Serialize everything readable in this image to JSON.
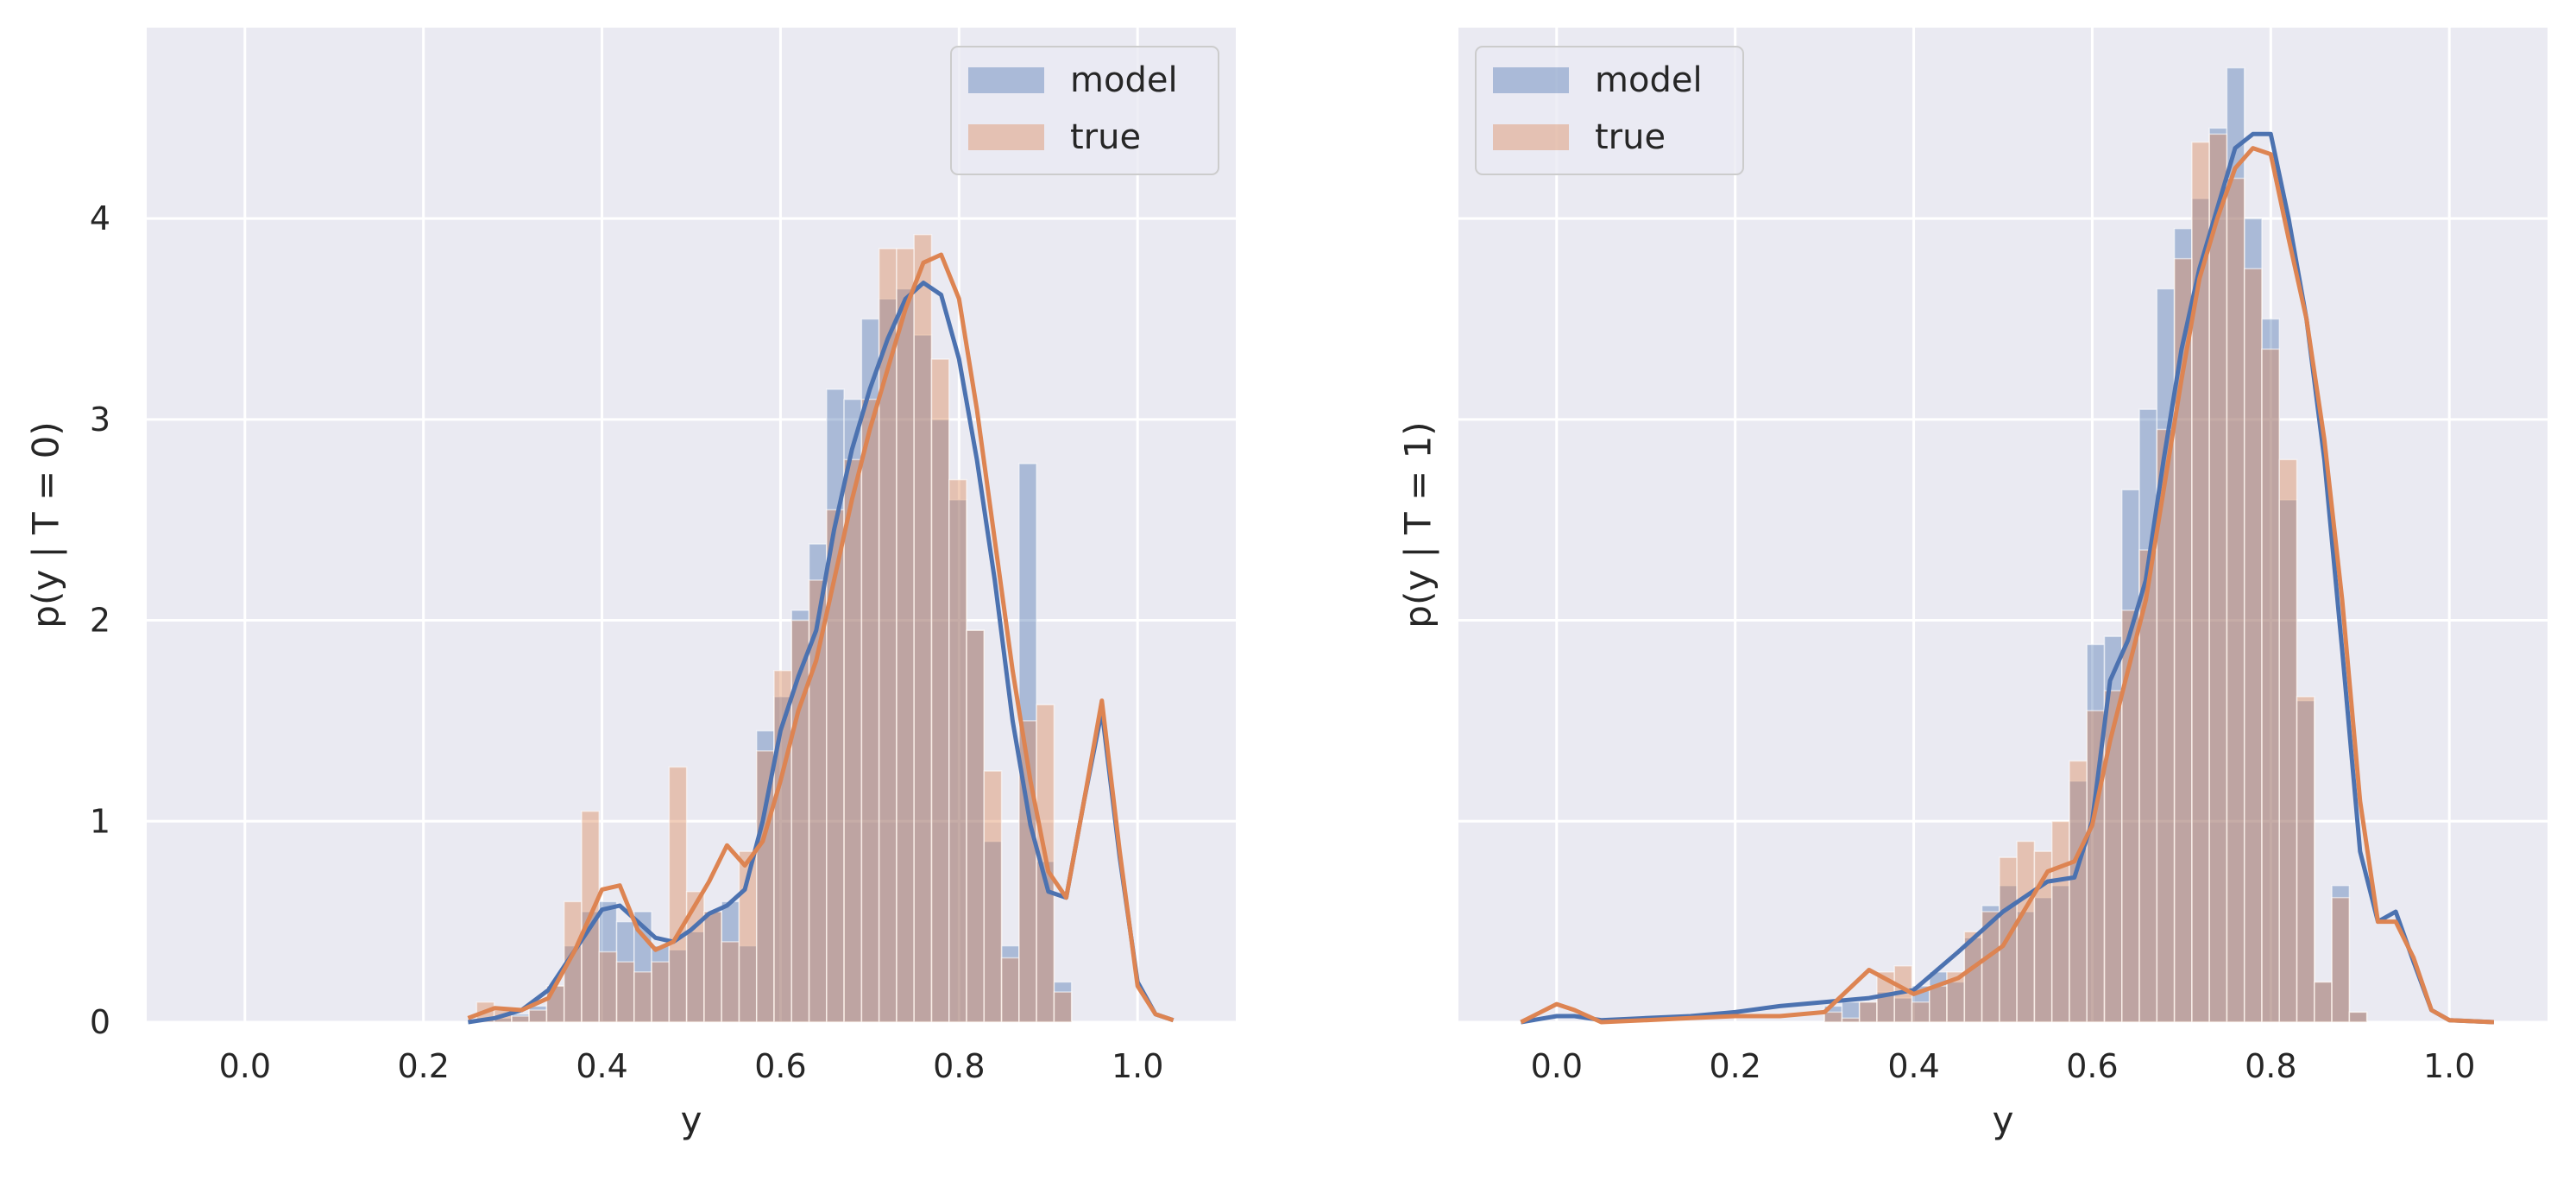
{
  "colors": {
    "panel_background": "#eaeaf2",
    "grid": "#ffffff",
    "model": "#4c72b0",
    "true": "#dd8452",
    "text": "#262626"
  },
  "chart_data": [
    {
      "type": "bar",
      "overlay": "kde-line",
      "title": "",
      "xlabel": "y",
      "ylabel": "p(y | T = 0)",
      "xlim": [
        -0.11,
        1.11
      ],
      "ylim": [
        0,
        4.95
      ],
      "xticks": [
        0.0,
        0.2,
        0.4,
        0.6,
        0.8,
        1.0
      ],
      "xtick_labels": [
        "0.0",
        "0.2",
        "0.4",
        "0.6",
        "0.8",
        "1.0"
      ],
      "yticks": [
        0,
        1,
        2,
        3,
        4
      ],
      "ytick_labels": [
        "0",
        "1",
        "2",
        "3",
        "4"
      ],
      "grid": true,
      "legend": {
        "position": "top-right",
        "entries": [
          "model",
          "true"
        ]
      },
      "bin_start": 0.24,
      "bin_width": 0.0196,
      "series": [
        {
          "name": "model",
          "hist": [
            0.0,
            0.02,
            0.02,
            0.04,
            0.08,
            0.18,
            0.38,
            0.55,
            0.6,
            0.5,
            0.55,
            0.38,
            0.36,
            0.45,
            0.55,
            0.6,
            0.38,
            1.45,
            1.62,
            2.05,
            2.38,
            3.15,
            3.1,
            3.5,
            3.6,
            3.65,
            3.42,
            3.0,
            2.6,
            1.95,
            0.9,
            0.38,
            2.78,
            0.8,
            0.2
          ],
          "kde_x": [
            0.25,
            0.28,
            0.31,
            0.34,
            0.37,
            0.4,
            0.42,
            0.44,
            0.46,
            0.48,
            0.5,
            0.52,
            0.54,
            0.56,
            0.58,
            0.6,
            0.62,
            0.64,
            0.66,
            0.68,
            0.7,
            0.72,
            0.74,
            0.76,
            0.78,
            0.8,
            0.82,
            0.84,
            0.86,
            0.88,
            0.9,
            0.92,
            0.94,
            0.96,
            0.98,
            1.0,
            1.02,
            1.04
          ],
          "kde_y": [
            0.0,
            0.02,
            0.06,
            0.16,
            0.36,
            0.56,
            0.58,
            0.5,
            0.42,
            0.4,
            0.46,
            0.54,
            0.58,
            0.66,
            1.0,
            1.45,
            1.72,
            1.95,
            2.45,
            2.85,
            3.15,
            3.4,
            3.6,
            3.68,
            3.62,
            3.3,
            2.8,
            2.2,
            1.5,
            0.98,
            0.65,
            0.62,
            1.1,
            1.55,
            0.82,
            0.2,
            0.04,
            0.01
          ]
        },
        {
          "name": "true",
          "hist": [
            0.0,
            0.1,
            0.06,
            0.03,
            0.06,
            0.18,
            0.6,
            1.05,
            0.35,
            0.3,
            0.25,
            0.3,
            1.27,
            0.65,
            0.55,
            0.4,
            0.85,
            1.35,
            1.75,
            2.0,
            2.2,
            2.55,
            2.8,
            3.1,
            3.85,
            3.85,
            3.92,
            3.3,
            2.7,
            1.95,
            1.25,
            0.32,
            1.5,
            1.58,
            0.15
          ],
          "kde_x": [
            0.25,
            0.28,
            0.31,
            0.34,
            0.37,
            0.4,
            0.42,
            0.44,
            0.46,
            0.48,
            0.5,
            0.52,
            0.54,
            0.56,
            0.58,
            0.6,
            0.62,
            0.64,
            0.66,
            0.68,
            0.7,
            0.72,
            0.74,
            0.76,
            0.78,
            0.8,
            0.82,
            0.84,
            0.86,
            0.88,
            0.9,
            0.92,
            0.94,
            0.96,
            0.98,
            1.0,
            1.02,
            1.04
          ],
          "kde_y": [
            0.02,
            0.07,
            0.06,
            0.12,
            0.36,
            0.66,
            0.68,
            0.46,
            0.36,
            0.4,
            0.55,
            0.7,
            0.88,
            0.78,
            0.9,
            1.2,
            1.55,
            1.8,
            2.2,
            2.6,
            2.95,
            3.25,
            3.55,
            3.78,
            3.82,
            3.6,
            3.05,
            2.4,
            1.75,
            1.2,
            0.75,
            0.62,
            1.1,
            1.6,
            0.85,
            0.18,
            0.04,
            0.01
          ]
        }
      ]
    },
    {
      "type": "bar",
      "overlay": "kde-line",
      "title": "",
      "xlabel": "y",
      "ylabel": "p(y | T = 1)",
      "xlim": [
        -0.11,
        1.11
      ],
      "ylim": [
        0,
        4.95
      ],
      "xticks": [
        0.0,
        0.2,
        0.4,
        0.6,
        0.8,
        1.0
      ],
      "xtick_labels": [
        "0.0",
        "0.2",
        "0.4",
        "0.6",
        "0.8",
        "1.0"
      ],
      "yticks": [
        0,
        1,
        2,
        3,
        4
      ],
      "ytick_labels": [],
      "grid": true,
      "legend": {
        "position": "top-left",
        "entries": [
          "model",
          "true"
        ]
      },
      "bin_start": 0.3,
      "bin_width": 0.0196,
      "series": [
        {
          "name": "model",
          "hist": [
            0.08,
            0.1,
            0.1,
            0.15,
            0.12,
            0.18,
            0.25,
            0.2,
            0.42,
            0.58,
            0.68,
            0.55,
            0.62,
            0.68,
            1.2,
            1.88,
            1.92,
            2.65,
            3.05,
            3.65,
            3.95,
            4.1,
            4.45,
            4.75,
            4.0,
            3.5,
            2.6,
            1.6,
            0.2,
            0.68,
            0.05
          ],
          "kde_x": [
            -0.04,
            0.0,
            0.02,
            0.05,
            0.1,
            0.15,
            0.2,
            0.25,
            0.3,
            0.35,
            0.4,
            0.45,
            0.5,
            0.55,
            0.58,
            0.6,
            0.62,
            0.64,
            0.66,
            0.68,
            0.7,
            0.72,
            0.74,
            0.76,
            0.78,
            0.8,
            0.82,
            0.84,
            0.86,
            0.88,
            0.9,
            0.92,
            0.94,
            0.96,
            0.98,
            1.0,
            1.05
          ],
          "kde_y": [
            0.0,
            0.03,
            0.03,
            0.01,
            0.02,
            0.03,
            0.05,
            0.08,
            0.1,
            0.12,
            0.16,
            0.35,
            0.55,
            0.7,
            0.72,
            1.0,
            1.7,
            1.9,
            2.2,
            2.8,
            3.35,
            3.75,
            4.05,
            4.35,
            4.42,
            4.42,
            4.0,
            3.5,
            2.8,
            1.85,
            0.85,
            0.5,
            0.55,
            0.3,
            0.06,
            0.01,
            0.0
          ]
        },
        {
          "name": "true",
          "hist": [
            0.05,
            0.02,
            0.1,
            0.25,
            0.28,
            0.1,
            0.18,
            0.25,
            0.45,
            0.55,
            0.82,
            0.9,
            0.85,
            1.0,
            1.3,
            1.55,
            1.65,
            2.05,
            2.35,
            2.95,
            3.8,
            4.38,
            4.42,
            4.2,
            3.75,
            3.35,
            2.8,
            1.62,
            0.2,
            0.62,
            0.05
          ],
          "kde_x": [
            -0.04,
            0.0,
            0.02,
            0.05,
            0.1,
            0.15,
            0.2,
            0.25,
            0.3,
            0.35,
            0.4,
            0.45,
            0.5,
            0.55,
            0.58,
            0.6,
            0.62,
            0.64,
            0.66,
            0.68,
            0.7,
            0.72,
            0.74,
            0.76,
            0.78,
            0.8,
            0.82,
            0.84,
            0.86,
            0.88,
            0.9,
            0.92,
            0.94,
            0.96,
            0.98,
            1.0,
            1.05
          ],
          "kde_y": [
            0.0,
            0.09,
            0.06,
            0.0,
            0.01,
            0.02,
            0.03,
            0.03,
            0.05,
            0.26,
            0.14,
            0.22,
            0.38,
            0.75,
            0.8,
            0.98,
            1.4,
            1.75,
            2.1,
            2.65,
            3.2,
            3.7,
            4.0,
            4.25,
            4.35,
            4.32,
            3.9,
            3.5,
            2.9,
            2.1,
            1.1,
            0.5,
            0.5,
            0.32,
            0.06,
            0.01,
            0.0
          ]
        }
      ]
    }
  ]
}
